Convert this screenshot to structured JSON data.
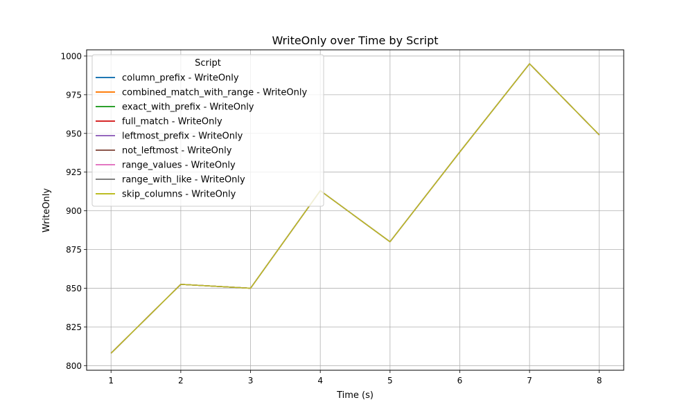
{
  "chart_data": {
    "type": "line",
    "title": "WriteOnly over Time by Script",
    "xlabel": "Time (s)",
    "ylabel": "WriteOnly",
    "x": [
      1,
      2,
      3,
      4,
      5,
      6,
      7,
      8
    ],
    "xlim": [
      0.65,
      8.35
    ],
    "ylim": [
      797,
      1004
    ],
    "xticks": [
      1,
      2,
      3,
      4,
      5,
      6,
      7,
      8
    ],
    "yticks": [
      800,
      825,
      850,
      875,
      900,
      925,
      950,
      975,
      1000
    ],
    "grid": true,
    "legend": {
      "title": "Script",
      "placement": "upper-left"
    },
    "series": [
      {
        "name": "column_prefix - WriteOnly",
        "color": "#1f77b4",
        "values": [
          808,
          852.5,
          850,
          913,
          880,
          938,
          995,
          949
        ]
      },
      {
        "name": "combined_match_with_range - WriteOnly",
        "color": "#ff7f0e",
        "values": [
          808,
          852.5,
          850,
          913,
          880,
          938,
          995,
          949
        ]
      },
      {
        "name": "exact_with_prefix - WriteOnly",
        "color": "#2ca02c",
        "values": [
          808,
          852.5,
          850,
          913,
          880,
          938,
          995,
          949
        ]
      },
      {
        "name": "full_match - WriteOnly",
        "color": "#d62728",
        "values": [
          808,
          852.5,
          850,
          913,
          880,
          938,
          995,
          949
        ]
      },
      {
        "name": "leftmost_prefix - WriteOnly",
        "color": "#9467bd",
        "values": [
          808,
          852.5,
          850,
          913,
          880,
          938,
          995,
          949
        ]
      },
      {
        "name": "not_leftmost - WriteOnly",
        "color": "#8c564b",
        "values": [
          808,
          852.5,
          850,
          913,
          880,
          938,
          995,
          949
        ]
      },
      {
        "name": "range_values - WriteOnly",
        "color": "#e377c2",
        "values": [
          808,
          852.5,
          850,
          913,
          880,
          938,
          995,
          949
        ]
      },
      {
        "name": "range_with_like - WriteOnly",
        "color": "#7f7f7f",
        "values": [
          808,
          852.5,
          850,
          913,
          880,
          938,
          995,
          949
        ]
      },
      {
        "name": "skip_columns - WriteOnly",
        "color": "#bcbd22",
        "values": [
          808,
          852.5,
          850,
          913,
          880,
          938,
          995,
          949
        ]
      }
    ]
  }
}
